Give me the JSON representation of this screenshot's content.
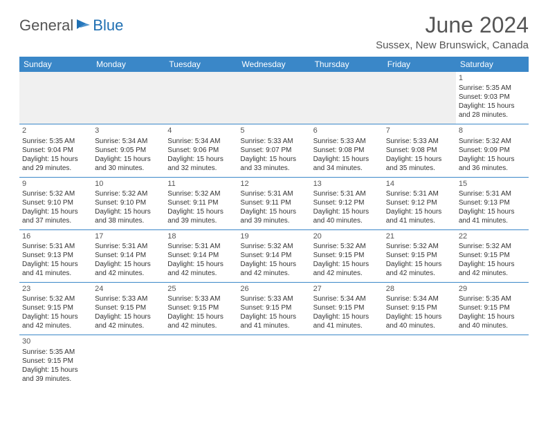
{
  "logo": {
    "general": "General",
    "blue": "Blue"
  },
  "title": "June 2024",
  "location": "Sussex, New Brunswick, Canada",
  "colors": {
    "header_bg": "#3a87c8",
    "header_text": "#ffffff",
    "border": "#3a87c8",
    "logo_blue": "#1f6fb2",
    "text": "#333333"
  },
  "day_headers": [
    "Sunday",
    "Monday",
    "Tuesday",
    "Wednesday",
    "Thursday",
    "Friday",
    "Saturday"
  ],
  "weeks": [
    [
      null,
      null,
      null,
      null,
      null,
      null,
      {
        "num": "1",
        "sunrise": "Sunrise: 5:35 AM",
        "sunset": "Sunset: 9:03 PM",
        "daylight1": "Daylight: 15 hours",
        "daylight2": "and 28 minutes."
      }
    ],
    [
      {
        "num": "2",
        "sunrise": "Sunrise: 5:35 AM",
        "sunset": "Sunset: 9:04 PM",
        "daylight1": "Daylight: 15 hours",
        "daylight2": "and 29 minutes."
      },
      {
        "num": "3",
        "sunrise": "Sunrise: 5:34 AM",
        "sunset": "Sunset: 9:05 PM",
        "daylight1": "Daylight: 15 hours",
        "daylight2": "and 30 minutes."
      },
      {
        "num": "4",
        "sunrise": "Sunrise: 5:34 AM",
        "sunset": "Sunset: 9:06 PM",
        "daylight1": "Daylight: 15 hours",
        "daylight2": "and 32 minutes."
      },
      {
        "num": "5",
        "sunrise": "Sunrise: 5:33 AM",
        "sunset": "Sunset: 9:07 PM",
        "daylight1": "Daylight: 15 hours",
        "daylight2": "and 33 minutes."
      },
      {
        "num": "6",
        "sunrise": "Sunrise: 5:33 AM",
        "sunset": "Sunset: 9:08 PM",
        "daylight1": "Daylight: 15 hours",
        "daylight2": "and 34 minutes."
      },
      {
        "num": "7",
        "sunrise": "Sunrise: 5:33 AM",
        "sunset": "Sunset: 9:08 PM",
        "daylight1": "Daylight: 15 hours",
        "daylight2": "and 35 minutes."
      },
      {
        "num": "8",
        "sunrise": "Sunrise: 5:32 AM",
        "sunset": "Sunset: 9:09 PM",
        "daylight1": "Daylight: 15 hours",
        "daylight2": "and 36 minutes."
      }
    ],
    [
      {
        "num": "9",
        "sunrise": "Sunrise: 5:32 AM",
        "sunset": "Sunset: 9:10 PM",
        "daylight1": "Daylight: 15 hours",
        "daylight2": "and 37 minutes."
      },
      {
        "num": "10",
        "sunrise": "Sunrise: 5:32 AM",
        "sunset": "Sunset: 9:10 PM",
        "daylight1": "Daylight: 15 hours",
        "daylight2": "and 38 minutes."
      },
      {
        "num": "11",
        "sunrise": "Sunrise: 5:32 AM",
        "sunset": "Sunset: 9:11 PM",
        "daylight1": "Daylight: 15 hours",
        "daylight2": "and 39 minutes."
      },
      {
        "num": "12",
        "sunrise": "Sunrise: 5:31 AM",
        "sunset": "Sunset: 9:11 PM",
        "daylight1": "Daylight: 15 hours",
        "daylight2": "and 39 minutes."
      },
      {
        "num": "13",
        "sunrise": "Sunrise: 5:31 AM",
        "sunset": "Sunset: 9:12 PM",
        "daylight1": "Daylight: 15 hours",
        "daylight2": "and 40 minutes."
      },
      {
        "num": "14",
        "sunrise": "Sunrise: 5:31 AM",
        "sunset": "Sunset: 9:12 PM",
        "daylight1": "Daylight: 15 hours",
        "daylight2": "and 41 minutes."
      },
      {
        "num": "15",
        "sunrise": "Sunrise: 5:31 AM",
        "sunset": "Sunset: 9:13 PM",
        "daylight1": "Daylight: 15 hours",
        "daylight2": "and 41 minutes."
      }
    ],
    [
      {
        "num": "16",
        "sunrise": "Sunrise: 5:31 AM",
        "sunset": "Sunset: 9:13 PM",
        "daylight1": "Daylight: 15 hours",
        "daylight2": "and 41 minutes."
      },
      {
        "num": "17",
        "sunrise": "Sunrise: 5:31 AM",
        "sunset": "Sunset: 9:14 PM",
        "daylight1": "Daylight: 15 hours",
        "daylight2": "and 42 minutes."
      },
      {
        "num": "18",
        "sunrise": "Sunrise: 5:31 AM",
        "sunset": "Sunset: 9:14 PM",
        "daylight1": "Daylight: 15 hours",
        "daylight2": "and 42 minutes."
      },
      {
        "num": "19",
        "sunrise": "Sunrise: 5:32 AM",
        "sunset": "Sunset: 9:14 PM",
        "daylight1": "Daylight: 15 hours",
        "daylight2": "and 42 minutes."
      },
      {
        "num": "20",
        "sunrise": "Sunrise: 5:32 AM",
        "sunset": "Sunset: 9:15 PM",
        "daylight1": "Daylight: 15 hours",
        "daylight2": "and 42 minutes."
      },
      {
        "num": "21",
        "sunrise": "Sunrise: 5:32 AM",
        "sunset": "Sunset: 9:15 PM",
        "daylight1": "Daylight: 15 hours",
        "daylight2": "and 42 minutes."
      },
      {
        "num": "22",
        "sunrise": "Sunrise: 5:32 AM",
        "sunset": "Sunset: 9:15 PM",
        "daylight1": "Daylight: 15 hours",
        "daylight2": "and 42 minutes."
      }
    ],
    [
      {
        "num": "23",
        "sunrise": "Sunrise: 5:32 AM",
        "sunset": "Sunset: 9:15 PM",
        "daylight1": "Daylight: 15 hours",
        "daylight2": "and 42 minutes."
      },
      {
        "num": "24",
        "sunrise": "Sunrise: 5:33 AM",
        "sunset": "Sunset: 9:15 PM",
        "daylight1": "Daylight: 15 hours",
        "daylight2": "and 42 minutes."
      },
      {
        "num": "25",
        "sunrise": "Sunrise: 5:33 AM",
        "sunset": "Sunset: 9:15 PM",
        "daylight1": "Daylight: 15 hours",
        "daylight2": "and 42 minutes."
      },
      {
        "num": "26",
        "sunrise": "Sunrise: 5:33 AM",
        "sunset": "Sunset: 9:15 PM",
        "daylight1": "Daylight: 15 hours",
        "daylight2": "and 41 minutes."
      },
      {
        "num": "27",
        "sunrise": "Sunrise: 5:34 AM",
        "sunset": "Sunset: 9:15 PM",
        "daylight1": "Daylight: 15 hours",
        "daylight2": "and 41 minutes."
      },
      {
        "num": "28",
        "sunrise": "Sunrise: 5:34 AM",
        "sunset": "Sunset: 9:15 PM",
        "daylight1": "Daylight: 15 hours",
        "daylight2": "and 40 minutes."
      },
      {
        "num": "29",
        "sunrise": "Sunrise: 5:35 AM",
        "sunset": "Sunset: 9:15 PM",
        "daylight1": "Daylight: 15 hours",
        "daylight2": "and 40 minutes."
      }
    ],
    [
      {
        "num": "30",
        "sunrise": "Sunrise: 5:35 AM",
        "sunset": "Sunset: 9:15 PM",
        "daylight1": "Daylight: 15 hours",
        "daylight2": "and 39 minutes."
      },
      null,
      null,
      null,
      null,
      null,
      null
    ]
  ]
}
